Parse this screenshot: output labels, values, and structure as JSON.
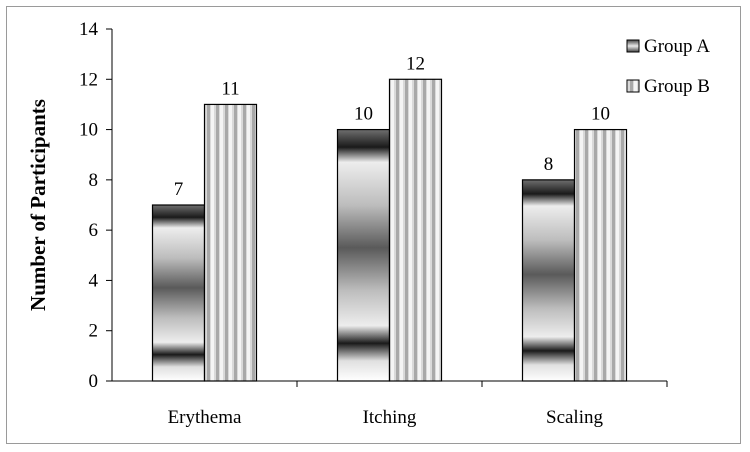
{
  "chart_data": {
    "type": "bar",
    "title": "",
    "xlabel": "",
    "ylabel": "Number of Participants",
    "categories": [
      "Erythema",
      "Itching",
      "Scaling"
    ],
    "series": [
      {
        "name": "Group A",
        "values": [
          7,
          10,
          8
        ],
        "labels": [
          "7",
          "10",
          "8"
        ],
        "pattern": "horizontal-gradient-bands"
      },
      {
        "name": "Group B",
        "values": [
          11,
          12,
          10
        ],
        "labels": [
          "11",
          "12",
          "10"
        ],
        "pattern": "vertical-stripes"
      }
    ],
    "ylim": [
      0,
      14
    ],
    "yticks": [
      "0",
      "2",
      "4",
      "6",
      "8",
      "10",
      "12",
      "14"
    ],
    "grid": false,
    "legend": "top-right",
    "colors": {
      "border": "#000000",
      "frame": "#9a9a9a",
      "bar_light": "#f2f2f2",
      "bar_dark": "#1a1a1a"
    }
  }
}
